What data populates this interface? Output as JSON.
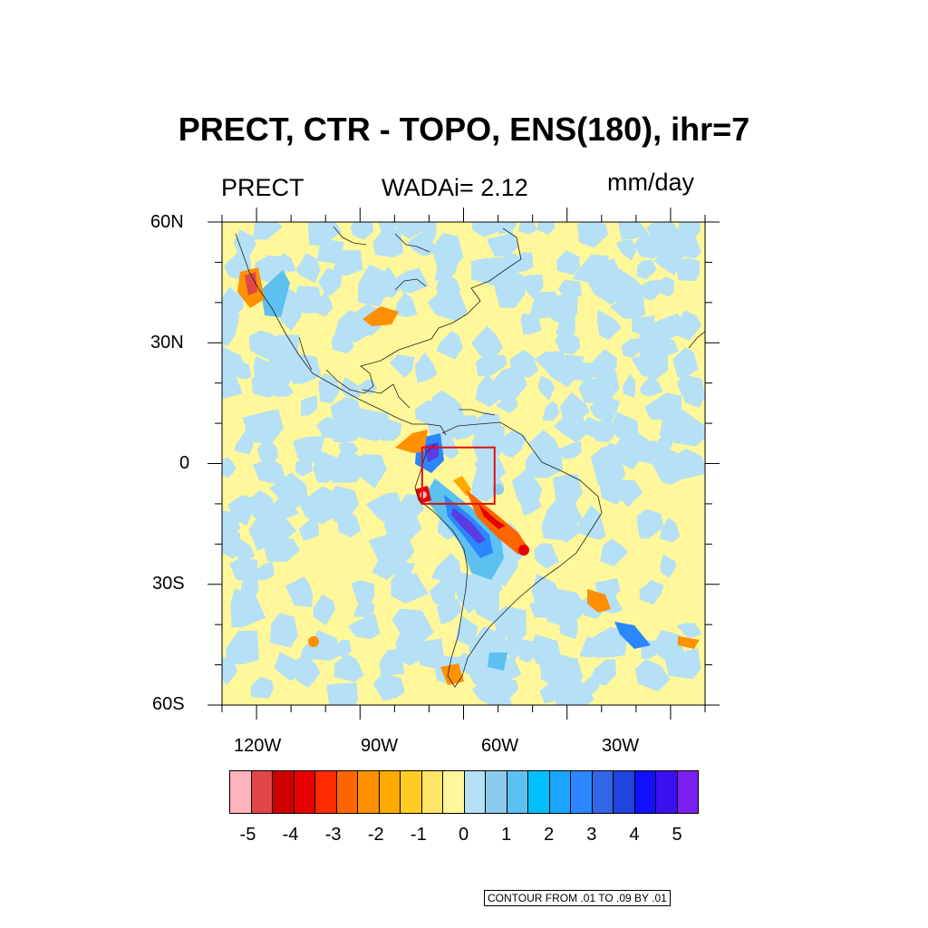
{
  "title": "PRECT, CTR - TOPO, ENS(180), ihr=7",
  "left_string": "PRECT",
  "center_string": "WADAi= 2.12",
  "right_string": "mm/day",
  "lat_labels": [
    "60N",
    "30N",
    "0",
    "30S",
    "60S"
  ],
  "lon_labels": [
    "120W",
    "90W",
    "60W",
    "30W"
  ],
  "colorbar": {
    "colors": [
      "#ffb3ba",
      "#e0464a",
      "#cc0000",
      "#e60000",
      "#ff2a00",
      "#ff6600",
      "#ff9000",
      "#ffaa00",
      "#ffcc22",
      "#ffe566",
      "#fff79a",
      "#b5e0f5",
      "#8ccbec",
      "#5cc0f0",
      "#00c0ff",
      "#1aa6ff",
      "#2b87ff",
      "#3366e6",
      "#2244dd",
      "#1111ff",
      "#3a10f0",
      "#7b1ff0"
    ],
    "labels": [
      "-5",
      "-4",
      "-3",
      "-2",
      "-1",
      "0",
      "1",
      "2",
      "3",
      "4",
      "5"
    ]
  },
  "contour_info": "CONTOUR FROM .01 TO .09 BY .01",
  "map": {
    "region": {
      "lon": [
        -130,
        10
      ],
      "lat": [
        -60,
        60
      ]
    },
    "box": {
      "lon": [
        -72,
        -51
      ],
      "lat": [
        -10,
        4
      ]
    },
    "box_color": "#dd1111",
    "background_colors": {
      "positive": "#fff79a",
      "negative": "#b5e0f5"
    }
  }
}
